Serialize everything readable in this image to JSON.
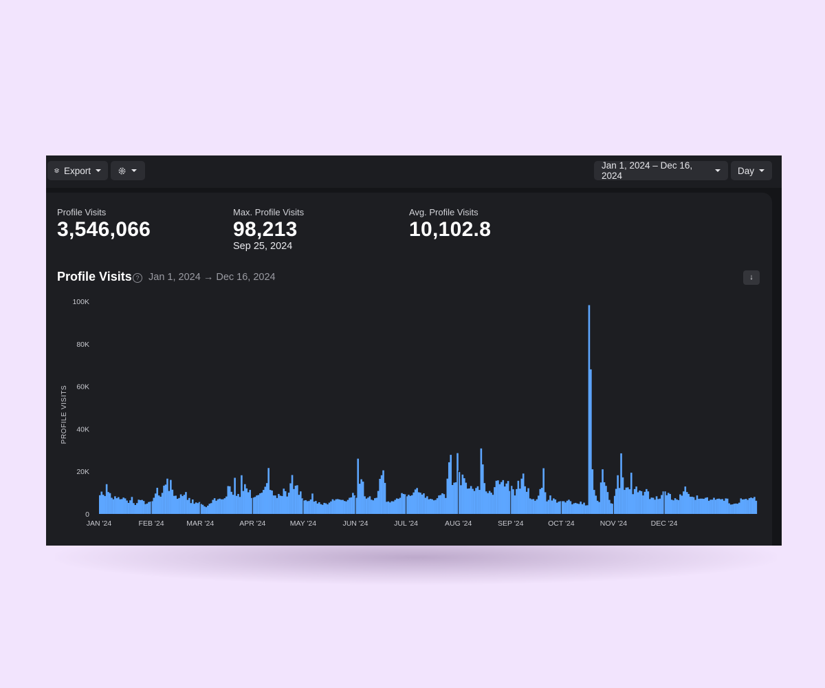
{
  "toolbar": {
    "export_label": "Export",
    "settings_icon": "gear-icon",
    "export_icon": "layers-icon",
    "date_range": "Jan 1, 2024 – Dec 16, 2024",
    "granularity": "Day"
  },
  "stats": [
    {
      "label": "Profile Visits",
      "value": "3,546,066",
      "sub": ""
    },
    {
      "label": "Max. Profile Visits",
      "value": "98,213",
      "sub": "Sep 25, 2024"
    },
    {
      "label": "Avg. Profile Visits",
      "value": "10,102.8",
      "sub": ""
    }
  ],
  "chart_header": {
    "title": "Profile Visits",
    "range": "Jan 1, 2024 → Dec 16, 2024",
    "help_icon": "question-circle-icon",
    "download_icon": "download-arrow-icon"
  },
  "colors": {
    "bar": "#5da6ff",
    "background": "#1d1e22",
    "page": "#f2e4fd"
  },
  "chart_data": {
    "type": "bar",
    "title": "Profile Visits",
    "ylabel": "PROFILE VISITS",
    "xlabel": "",
    "ylim": [
      0,
      100000
    ],
    "yticks": [
      0,
      20000,
      40000,
      60000,
      80000,
      100000
    ],
    "ytick_labels": [
      "0",
      "20K",
      "40K",
      "60K",
      "80K",
      "100K"
    ],
    "x_start": "2024-01-01",
    "x_end": "2024-12-16",
    "month_labels": [
      "JAN '24",
      "FEB '24",
      "MAR '24",
      "APR '24",
      "MAY '24",
      "JUN '24",
      "JUL '24",
      "AUG '24",
      "SEP '24",
      "OCT '24",
      "NOV '24",
      "DEC '24"
    ],
    "grid": false,
    "series": [
      {
        "values": [
          8800,
          10500,
          9000,
          8400,
          14000,
          10300,
          9800,
          7600,
          6900,
          8300,
          7400,
          7900,
          6900,
          7000,
          7700,
          7300,
          6300,
          5200,
          6400,
          8000,
          5100,
          4200,
          5100,
          6700,
          6500,
          6600,
          6100,
          4600,
          4900,
          5600,
          5800,
          6000,
          7600,
          9600,
          12300,
          8700,
          8100,
          9900,
          13300,
          13800,
          16600,
          10800,
          16000,
          11400,
          8500,
          8600,
          7100,
          7500,
          9200,
          8400,
          9000,
          10300,
          6600,
          7500,
          5100,
          6800,
          4800,
          5400,
          5100,
          5600,
          4700,
          4300,
          3600,
          3200,
          3900,
          4800,
          5100,
          6600,
          7400,
          6200,
          6900,
          7200,
          6900,
          6900,
          7400,
          8200,
          13100,
          13000,
          10400,
          9000,
          17000,
          8500,
          9400,
          8000,
          18200,
          10800,
          14000,
          12000,
          10200,
          11300,
          7500,
          7700,
          8000,
          8700,
          8900,
          9700,
          10000,
          11300,
          12800,
          14500,
          21600,
          11300,
          11000,
          8700,
          8700,
          7500,
          9400,
          8600,
          8400,
          11900,
          10700,
          8200,
          10000,
          14400,
          18300,
          11700,
          13300,
          13500,
          9000,
          10600,
          7300,
          6300,
          6500,
          6000,
          6100,
          6800,
          9600,
          5800,
          6100,
          4900,
          5500,
          4600,
          4300,
          5200,
          5000,
          4500,
          5300,
          5900,
          6900,
          6300,
          6900,
          7000,
          6800,
          6600,
          6600,
          6100,
          5900,
          6600,
          7600,
          7800,
          9900,
          8700,
          7600,
          26000,
          14200,
          16300,
          15200,
          8300,
          7200,
          7700,
          8300,
          6700,
          6400,
          7400,
          7600,
          10800,
          16500,
          18200,
          20500,
          14600,
          5700,
          5900,
          5400,
          6000,
          5900,
          6600,
          7300,
          7100,
          7600,
          9800,
          9400,
          9200,
          8300,
          9000,
          8500,
          8800,
          10100,
          11500,
          12200,
          10200,
          10000,
          9100,
          9700,
          7600,
          8300,
          6900,
          7100,
          6900,
          6400,
          6600,
          7400,
          8700,
          8900,
          9700,
          9300,
          7500,
          16600,
          24300,
          27800,
          13600,
          14700,
          14900,
          28600,
          19700,
          13500,
          18500,
          16800,
          14700,
          11900,
          12000,
          13100,
          11800,
          10800,
          12200,
          13000,
          11300,
          30800,
          23300,
          14500,
          10600,
          9800,
          10800,
          10000,
          9000,
          12600,
          15600,
          15800,
          14000,
          15000,
          15900,
          12900,
          14300,
          15500,
          10800,
          13200,
          11600,
          8700,
          11700,
          15600,
          11900,
          16600,
          19000,
          13000,
          10400,
          12100,
          7300,
          6900,
          7000,
          6200,
          6900,
          8600,
          11700,
          12300,
          21500,
          10200,
          5900,
          6600,
          8700,
          6300,
          7300,
          6800,
          5300,
          5800,
          6000,
          6000,
          6000,
          5400,
          6200,
          6700,
          6000,
          4500,
          5000,
          5200,
          4900,
          4700,
          5800,
          4600,
          5300,
          4000,
          4100,
          98213,
          68000,
          21000,
          11300,
          8600,
          6200,
          5600,
          14800,
          21000,
          14900,
          13200,
          10300,
          6600,
          5000,
          4800,
          8500,
          11800,
          18200,
          12200,
          28500,
          17200,
          11300,
          12400,
          12500,
          11600,
          19400,
          9300,
          11700,
          12900,
          10200,
          11000,
          10700,
          8700,
          10400,
          11700,
          10600,
          7000,
          7700,
          7600,
          6700,
          8300,
          7000,
          7200,
          8900,
          10600,
          10600,
          8800,
          9900,
          9400,
          6700,
          6400,
          7400,
          6800,
          6500,
          9200,
          8600,
          10600,
          12900,
          10300,
          9400,
          8100,
          8100,
          7900,
          6600,
          8700,
          7100,
          7200,
          7200,
          7100,
          7600,
          7800,
          6200,
          6700,
          6700,
          7600,
          6700,
          7100,
          7200,
          6900,
          7000,
          6200,
          7300,
          7200,
          5000,
          4400,
          4500,
          4800,
          4900,
          4800,
          5300,
          7300,
          6800,
          6900,
          7100,
          6600,
          7400,
          7700,
          7400,
          8000,
          6200
        ]
      }
    ]
  }
}
